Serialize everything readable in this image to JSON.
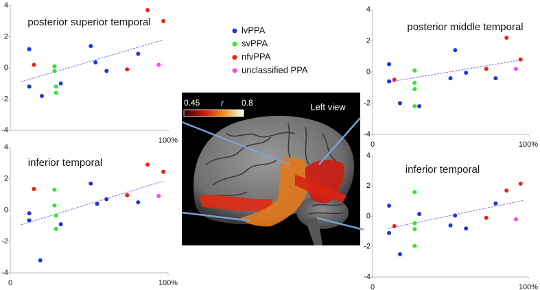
{
  "chart_data": [
    {
      "type": "scatter",
      "title": "posterior superior temporal",
      "xlim": [
        0,
        100
      ],
      "ylim": [
        -4,
        4
      ],
      "xticks": [
        {
          "value": 100,
          "label": "100%"
        }
      ],
      "yticks": [
        -4,
        -2,
        0,
        2,
        4
      ],
      "series": [
        {
          "name": "lvPPA",
          "color": "#1f35e0",
          "x": [
            12,
            12,
            20,
            32,
            51,
            54,
            61,
            81
          ],
          "values": [
            1.2,
            -1.2,
            -1.8,
            -1.0,
            1.4,
            0.35,
            -0.2,
            0.9
          ]
        },
        {
          "name": "svPPA",
          "color": "#2ee82e",
          "x": [
            28,
            28,
            29,
            29
          ],
          "values": [
            0.1,
            -0.2,
            -1.2,
            -1.6
          ]
        },
        {
          "name": "nfvPPA",
          "color": "#ee2211",
          "x": [
            15,
            74,
            87,
            97
          ],
          "values": [
            0.2,
            -0.1,
            3.7,
            3.0
          ]
        },
        {
          "name": "unclassified PPA",
          "color": "#ff44ff",
          "x": [
            94
          ],
          "values": [
            0.2
          ]
        }
      ],
      "trend": {
        "x": [
          6.5,
          97
        ],
        "y": [
          -0.9,
          1.8
        ]
      }
    },
    {
      "type": "scatter",
      "title": "posterior middle temporal",
      "xlim": [
        0,
        100
      ],
      "ylim": [
        -4,
        4
      ],
      "xticks": [
        0,
        {
          "value": 100,
          "label": "100%"
        }
      ],
      "yticks": [
        -4,
        -2,
        0,
        2,
        4
      ],
      "series": [
        {
          "name": "lvPPA",
          "color": "#1f35e0",
          "x": [
            10.6,
            10.6,
            17.6,
            30,
            50,
            53,
            60,
            79
          ],
          "values": [
            0.5,
            -0.6,
            -2.0,
            -2.2,
            -0.4,
            1.4,
            -0.05,
            -0.4
          ]
        },
        {
          "name": "svPPA",
          "color": "#2ee82e",
          "x": [
            27,
            27,
            27,
            27
          ],
          "values": [
            0.1,
            -0.7,
            -1.1,
            -2.2
          ]
        },
        {
          "name": "nfvPPA",
          "color": "#ee2211",
          "x": [
            14,
            73,
            86,
            95
          ],
          "values": [
            -0.5,
            0.2,
            2.2,
            0.8
          ]
        },
        {
          "name": "unclassified PPA",
          "color": "#ff44ff",
          "x": [
            92
          ],
          "values": [
            0.2
          ]
        }
      ],
      "trend": {
        "x": [
          10,
          97
        ],
        "y": [
          -0.65,
          0.8
        ]
      }
    },
    {
      "type": "scatter",
      "title": "inferior temporal",
      "xlim": [
        0,
        100
      ],
      "ylim": [
        -4,
        4
      ],
      "xticks": [
        0,
        {
          "value": 100,
          "label": "100%"
        }
      ],
      "yticks": [
        -4,
        -2,
        0,
        2,
        4
      ],
      "series": [
        {
          "name": "lvPPA",
          "color": "#1f35e0",
          "x": [
            12,
            12,
            19,
            32,
            51,
            55,
            61,
            81
          ],
          "values": [
            -0.2,
            -0.65,
            -3.2,
            -0.9,
            1.7,
            0.4,
            0.7,
            0.5
          ]
        },
        {
          "name": "svPPA",
          "color": "#2ee82e",
          "x": [
            28,
            28,
            29,
            29
          ],
          "values": [
            1.3,
            0.3,
            -0.35,
            -1.2
          ]
        },
        {
          "name": "nfvPPA",
          "color": "#ee2211",
          "x": [
            15,
            74,
            87,
            97
          ],
          "values": [
            1.35,
            0.95,
            2.9,
            2.45
          ]
        },
        {
          "name": "unclassified PPA",
          "color": "#ff44ff",
          "x": [
            94
          ],
          "values": [
            0.9
          ]
        }
      ],
      "trend": {
        "x": [
          6.5,
          97
        ],
        "y": [
          -0.95,
          1.85
        ]
      }
    },
    {
      "type": "scatter",
      "title": "inferior temporal",
      "xlim": [
        0,
        100
      ],
      "ylim": [
        -4,
        4
      ],
      "xticks": [
        0,
        {
          "value": 100,
          "label": "100%"
        }
      ],
      "yticks": [
        -4,
        -2,
        0,
        2,
        4
      ],
      "series": [
        {
          "name": "lvPPA",
          "color": "#1f35e0",
          "x": [
            10.6,
            10.6,
            17.6,
            30,
            50,
            53,
            60,
            79
          ],
          "values": [
            0.7,
            -1.1,
            -2.5,
            0.15,
            -0.6,
            0.05,
            -0.8,
            0.85
          ]
        },
        {
          "name": "svPPA",
          "color": "#2ee82e",
          "x": [
            27,
            27,
            27,
            27
          ],
          "values": [
            1.6,
            -0.45,
            -0.85,
            -1.95
          ]
        },
        {
          "name": "nfvPPA",
          "color": "#ee2211",
          "x": [
            14,
            73,
            86,
            95
          ],
          "values": [
            -0.65,
            -0.1,
            1.7,
            2.15
          ]
        },
        {
          "name": "unclassified PPA",
          "color": "#ff44ff",
          "x": [
            92
          ],
          "values": [
            -0.2
          ]
        }
      ],
      "trend": {
        "x": [
          10,
          97
        ],
        "y": [
          -0.8,
          1.05
        ]
      }
    }
  ],
  "brain_panel": {
    "colorbar": {
      "min_label": "0.45",
      "variable": "r",
      "max_label": "0.8"
    },
    "view_label": "Left view"
  }
}
